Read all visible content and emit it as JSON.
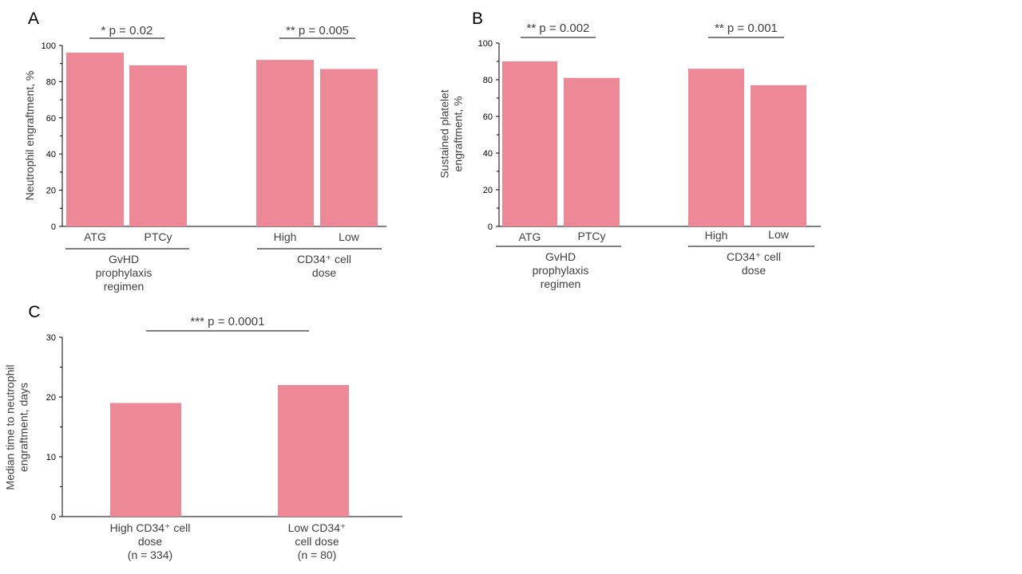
{
  "chart_data": [
    {
      "panel": "A",
      "type": "bar",
      "ylabel": "Neutrophil  engraftment, %",
      "ylim": [
        0,
        100
      ],
      "yticks": [
        "0",
        "20",
        "40",
        "60",
        "80",
        "100"
      ],
      "color": "#ed8896",
      "groups": [
        {
          "label_lines": [
            "GvHD",
            "prophylaxis",
            "regimen"
          ],
          "pvalue": "* p = 0.02",
          "bars": [
            {
              "label": "ATG",
              "value": 96
            },
            {
              "label": "PTCy",
              "value": 89
            }
          ]
        },
        {
          "label_lines": [
            "CD34⁺ cell",
            "dose"
          ],
          "pvalue": "** p = 0.005",
          "bars": [
            {
              "label": "High",
              "value": 92
            },
            {
              "label": "Low",
              "value": 87
            }
          ]
        }
      ]
    },
    {
      "panel": "B",
      "type": "bar",
      "ylabel_lines": [
        "Sustained platelet",
        "engraftment, %"
      ],
      "ylim": [
        0,
        100
      ],
      "yticks": [
        "0",
        "20",
        "40",
        "60",
        "80",
        "100"
      ],
      "color": "#ed8896",
      "groups": [
        {
          "label_lines": [
            "GvHD",
            "prophylaxis",
            "regimen"
          ],
          "pvalue": "** p = 0.002",
          "bars": [
            {
              "label": "ATG",
              "value": 90
            },
            {
              "label": "PTCy",
              "value": 81
            }
          ]
        },
        {
          "label_lines": [
            "CD34⁺ cell",
            "dose"
          ],
          "pvalue": "** p = 0.001",
          "bars": [
            {
              "label": "High",
              "value": 86
            },
            {
              "label": "Low",
              "value": 77
            }
          ]
        }
      ]
    },
    {
      "panel": "C",
      "type": "bar",
      "ylabel_lines": [
        "Median time to neutrophil",
        "engraftment,  days"
      ],
      "ylim": [
        0,
        30
      ],
      "yticks": [
        "0",
        "10",
        "20",
        "30"
      ],
      "color": "#ed8896",
      "pvalue": "*** p = 0.0001",
      "bars": [
        {
          "label_lines": [
            "High CD34⁺ cell",
            "dose",
            "(n = 334)"
          ],
          "value": 19
        },
        {
          "label_lines": [
            "Low CD34⁺",
            "cell dose",
            "(n = 80)"
          ],
          "value": 22
        }
      ]
    }
  ]
}
